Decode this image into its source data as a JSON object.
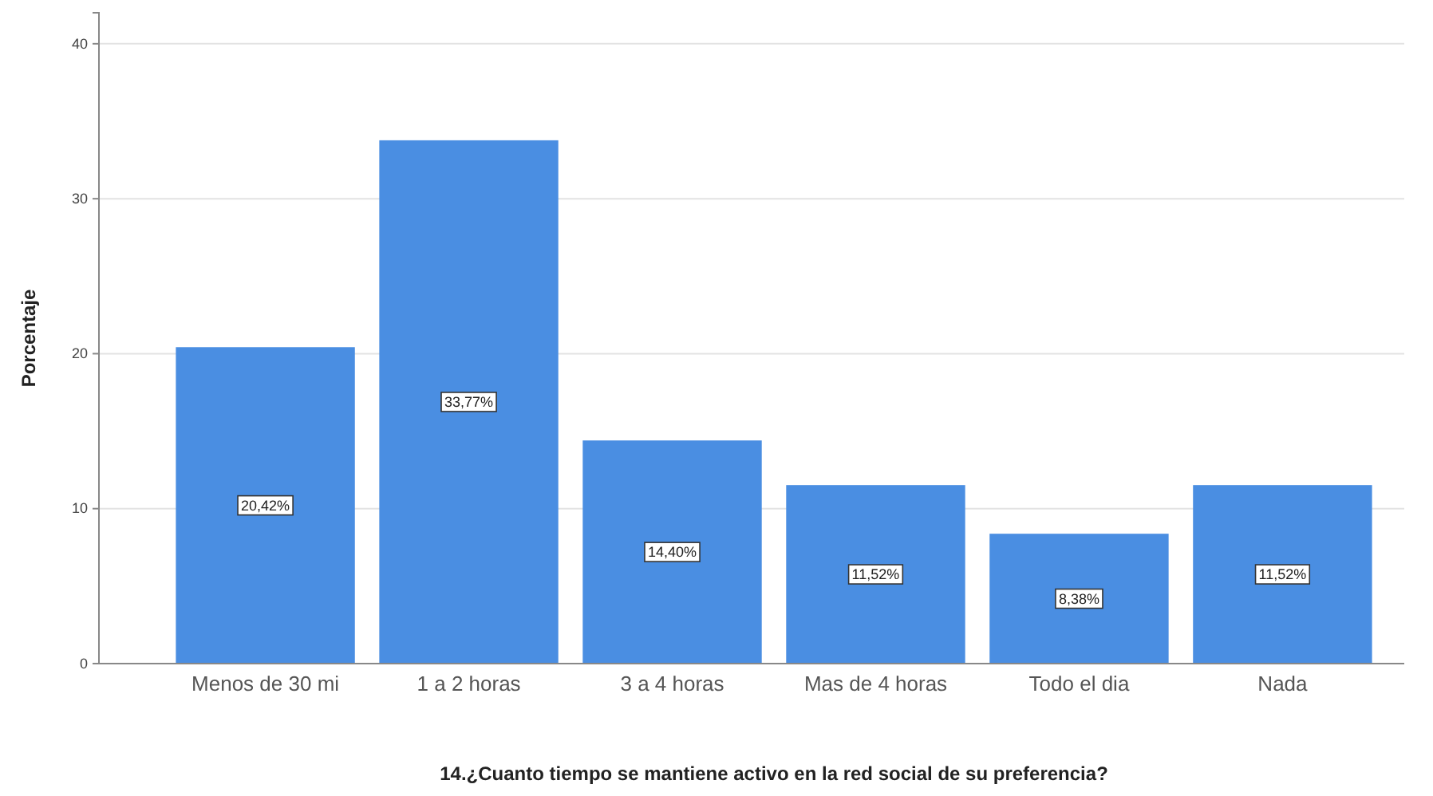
{
  "chart_data": {
    "type": "bar",
    "xlabel": "14.¿Cuanto tiempo se mantiene activo en la red social de su preferencia?",
    "ylabel": "Porcentaje",
    "categories": [
      "Menos de 30 mi",
      "1 a 2 horas",
      "3 a 4 horas",
      "Mas de 4 horas",
      "Todo el dia",
      "Nada"
    ],
    "values": [
      20.42,
      33.77,
      14.4,
      11.52,
      8.38,
      11.52
    ],
    "value_labels": [
      "20,42%",
      "33,77%",
      "14,40%",
      "11,52%",
      "8,38%",
      "11,52%"
    ],
    "color": "#4a8ee2",
    "ylim": [
      0,
      42
    ],
    "yticks": [
      0,
      10,
      20,
      30,
      40
    ],
    "grid": "y"
  }
}
